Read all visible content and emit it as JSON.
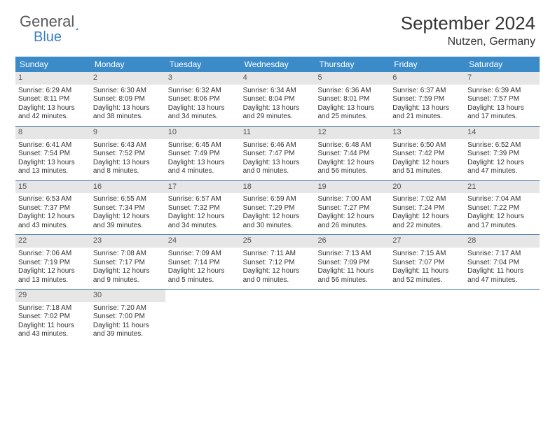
{
  "brand": {
    "part1": "General",
    "part2": "Blue"
  },
  "title": "September 2024",
  "location": "Nutzen, Germany",
  "colors": {
    "header_bg": "#3b8bc9",
    "daynum_bg": "#e6e6e6",
    "row_border": "#3b6fa0",
    "text": "#333333",
    "logo_gray": "#5a5a5a",
    "logo_blue": "#3b7fc4",
    "page_bg": "#ffffff"
  },
  "day_headers": [
    "Sunday",
    "Monday",
    "Tuesday",
    "Wednesday",
    "Thursday",
    "Friday",
    "Saturday"
  ],
  "labels": {
    "sunrise": "Sunrise:",
    "sunset": "Sunset:",
    "daylight": "Daylight:"
  },
  "weeks": [
    [
      {
        "n": "1",
        "sr": "6:29 AM",
        "ss": "8:11 PM",
        "dl": "13 hours and 42 minutes."
      },
      {
        "n": "2",
        "sr": "6:30 AM",
        "ss": "8:09 PM",
        "dl": "13 hours and 38 minutes."
      },
      {
        "n": "3",
        "sr": "6:32 AM",
        "ss": "8:06 PM",
        "dl": "13 hours and 34 minutes."
      },
      {
        "n": "4",
        "sr": "6:34 AM",
        "ss": "8:04 PM",
        "dl": "13 hours and 29 minutes."
      },
      {
        "n": "5",
        "sr": "6:36 AM",
        "ss": "8:01 PM",
        "dl": "13 hours and 25 minutes."
      },
      {
        "n": "6",
        "sr": "6:37 AM",
        "ss": "7:59 PM",
        "dl": "13 hours and 21 minutes."
      },
      {
        "n": "7",
        "sr": "6:39 AM",
        "ss": "7:57 PM",
        "dl": "13 hours and 17 minutes."
      }
    ],
    [
      {
        "n": "8",
        "sr": "6:41 AM",
        "ss": "7:54 PM",
        "dl": "13 hours and 13 minutes."
      },
      {
        "n": "9",
        "sr": "6:43 AM",
        "ss": "7:52 PM",
        "dl": "13 hours and 8 minutes."
      },
      {
        "n": "10",
        "sr": "6:45 AM",
        "ss": "7:49 PM",
        "dl": "13 hours and 4 minutes."
      },
      {
        "n": "11",
        "sr": "6:46 AM",
        "ss": "7:47 PM",
        "dl": "13 hours and 0 minutes."
      },
      {
        "n": "12",
        "sr": "6:48 AM",
        "ss": "7:44 PM",
        "dl": "12 hours and 56 minutes."
      },
      {
        "n": "13",
        "sr": "6:50 AM",
        "ss": "7:42 PM",
        "dl": "12 hours and 51 minutes."
      },
      {
        "n": "14",
        "sr": "6:52 AM",
        "ss": "7:39 PM",
        "dl": "12 hours and 47 minutes."
      }
    ],
    [
      {
        "n": "15",
        "sr": "6:53 AM",
        "ss": "7:37 PM",
        "dl": "12 hours and 43 minutes."
      },
      {
        "n": "16",
        "sr": "6:55 AM",
        "ss": "7:34 PM",
        "dl": "12 hours and 39 minutes."
      },
      {
        "n": "17",
        "sr": "6:57 AM",
        "ss": "7:32 PM",
        "dl": "12 hours and 34 minutes."
      },
      {
        "n": "18",
        "sr": "6:59 AM",
        "ss": "7:29 PM",
        "dl": "12 hours and 30 minutes."
      },
      {
        "n": "19",
        "sr": "7:00 AM",
        "ss": "7:27 PM",
        "dl": "12 hours and 26 minutes."
      },
      {
        "n": "20",
        "sr": "7:02 AM",
        "ss": "7:24 PM",
        "dl": "12 hours and 22 minutes."
      },
      {
        "n": "21",
        "sr": "7:04 AM",
        "ss": "7:22 PM",
        "dl": "12 hours and 17 minutes."
      }
    ],
    [
      {
        "n": "22",
        "sr": "7:06 AM",
        "ss": "7:19 PM",
        "dl": "12 hours and 13 minutes."
      },
      {
        "n": "23",
        "sr": "7:08 AM",
        "ss": "7:17 PM",
        "dl": "12 hours and 9 minutes."
      },
      {
        "n": "24",
        "sr": "7:09 AM",
        "ss": "7:14 PM",
        "dl": "12 hours and 5 minutes."
      },
      {
        "n": "25",
        "sr": "7:11 AM",
        "ss": "7:12 PM",
        "dl": "12 hours and 0 minutes."
      },
      {
        "n": "26",
        "sr": "7:13 AM",
        "ss": "7:09 PM",
        "dl": "11 hours and 56 minutes."
      },
      {
        "n": "27",
        "sr": "7:15 AM",
        "ss": "7:07 PM",
        "dl": "11 hours and 52 minutes."
      },
      {
        "n": "28",
        "sr": "7:17 AM",
        "ss": "7:04 PM",
        "dl": "11 hours and 47 minutes."
      }
    ],
    [
      {
        "n": "29",
        "sr": "7:18 AM",
        "ss": "7:02 PM",
        "dl": "11 hours and 43 minutes."
      },
      {
        "n": "30",
        "sr": "7:20 AM",
        "ss": "7:00 PM",
        "dl": "11 hours and 39 minutes."
      },
      null,
      null,
      null,
      null,
      null
    ]
  ]
}
